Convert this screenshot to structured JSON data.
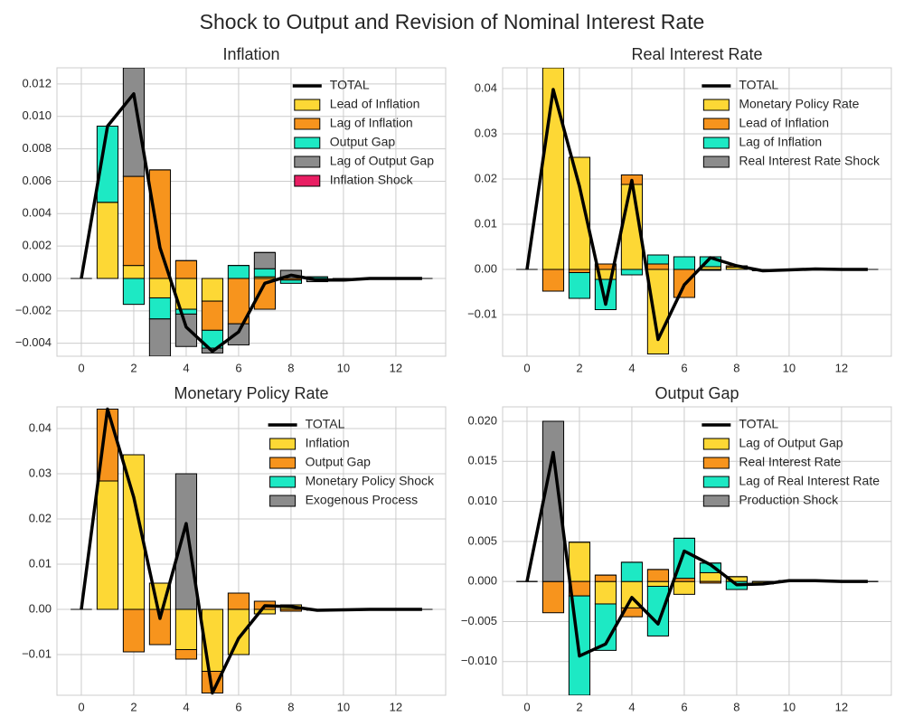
{
  "title": "Shock to Output and Revision of Nominal Interest Rate",
  "chart_data": [
    {
      "type": "bar",
      "title": "Inflation",
      "x": [
        0,
        1,
        2,
        3,
        4,
        5,
        6,
        7,
        8,
        9,
        10,
        11,
        12,
        13
      ],
      "xlim": [
        -0.93,
        13.9
      ],
      "xticks": [
        0,
        2,
        4,
        6,
        8,
        10,
        12
      ],
      "ylim": [
        -0.0048,
        0.013
      ],
      "yticks": [
        {
          "value": -0.004,
          "label": "−0.004"
        },
        {
          "value": -0.002,
          "label": "−0.002"
        },
        {
          "value": 0,
          "label": "0.000"
        },
        {
          "value": 0.002,
          "label": "0.002"
        },
        {
          "value": 0.004,
          "label": "0.004"
        },
        {
          "value": 0.006,
          "label": "0.006"
        },
        {
          "value": 0.008,
          "label": "0.008"
        },
        {
          "value": 0.01,
          "label": "0.010"
        },
        {
          "value": 0.012,
          "label": "0.012"
        }
      ],
      "grid": true,
      "legend": "upper right",
      "stacked": true,
      "total": {
        "name": "TOTAL",
        "color": "#000000",
        "values": [
          0,
          0.0094,
          0.0114,
          0.0019,
          -0.003,
          -0.0045,
          -0.0033,
          -0.0003,
          0.0002,
          -0.0001,
          -0.0001,
          0,
          0,
          0
        ]
      },
      "series": [
        {
          "name": "Lead of Inflation",
          "color": "#fdd835",
          "values": [
            0,
            0.0047,
            0.0008,
            -0.0012,
            -0.0019,
            -0.0014,
            0,
            0.0001,
            0,
            0,
            0,
            0,
            0,
            0
          ]
        },
        {
          "name": "Lag of Inflation",
          "color": "#f7941d",
          "values": [
            0,
            0,
            0.0055,
            0.0067,
            0.0011,
            -0.0018,
            -0.0028,
            -0.0019,
            -0.0001,
            0,
            0,
            0,
            0,
            0
          ]
        },
        {
          "name": "Output Gap",
          "color": "#1de9c4",
          "values": [
            0,
            0.0047,
            -0.0016,
            -0.0013,
            -0.0003,
            -0.0011,
            0.0008,
            0.0005,
            -0.0002,
            0.0001,
            0,
            0,
            0,
            0
          ]
        },
        {
          "name": "Lag of Output Gap",
          "color": "#8c8c8c",
          "values": [
            0,
            0,
            0.0067,
            -0.0023,
            -0.002,
            -0.0003,
            -0.0013,
            0.001,
            0.0005,
            -0.0002,
            -0.0001,
            0,
            0,
            0
          ]
        },
        {
          "name": "Inflation Shock",
          "color": "#e91e63",
          "values": [
            0,
            0,
            0,
            0,
            0,
            0,
            0,
            0,
            0,
            0,
            0,
            0,
            0,
            0
          ]
        }
      ]
    },
    {
      "type": "bar",
      "title": "Real Interest Rate",
      "x": [
        0,
        1,
        2,
        3,
        4,
        5,
        6,
        7,
        8,
        9,
        10,
        11,
        12,
        13
      ],
      "xlim": [
        -0.93,
        13.9
      ],
      "xticks": [
        0,
        2,
        4,
        6,
        8,
        10,
        12
      ],
      "ylim": [
        -0.0192,
        0.0446
      ],
      "yticks": [
        {
          "value": -0.01,
          "label": "−0.01"
        },
        {
          "value": 0,
          "label": "0.00"
        },
        {
          "value": 0.01,
          "label": "0.01"
        },
        {
          "value": 0.02,
          "label": "0.02"
        },
        {
          "value": 0.03,
          "label": "0.03"
        },
        {
          "value": 0.04,
          "label": "0.04"
        }
      ],
      "grid": true,
      "legend": "upper right",
      "stacked": true,
      "total": {
        "name": "TOTAL",
        "color": "#000000",
        "values": [
          0,
          0.0398,
          0.0184,
          -0.0077,
          0.0197,
          -0.0155,
          -0.0034,
          0.0026,
          0.0008,
          -0.0003,
          -0.0001,
          0.0001,
          0,
          0
        ]
      },
      "series": [
        {
          "name": "Monetary Policy Rate",
          "color": "#fdd835",
          "values": [
            0,
            0.0446,
            0.0248,
            -0.0022,
            0.0188,
            -0.0187,
            0,
            0.0006,
            0.0005,
            -0.0002,
            -0.0001,
            0.0001,
            0,
            0
          ]
        },
        {
          "name": "Lead of Inflation",
          "color": "#f7941d",
          "values": [
            0,
            -0.0048,
            -0.0007,
            0.0012,
            0.0021,
            0.0012,
            -0.0062,
            -0.0002,
            0.0003,
            -0.0001,
            0,
            0,
            0,
            0
          ]
        },
        {
          "name": "Lag of Inflation",
          "color": "#1de9c4",
          "values": [
            0,
            0,
            -0.0057,
            -0.0067,
            -0.0012,
            0.002,
            0.0028,
            0.0022,
            0,
            0,
            0,
            0,
            0,
            0
          ]
        },
        {
          "name": "Real Interest Rate Shock",
          "color": "#8c8c8c",
          "values": [
            0,
            0,
            0,
            0,
            0,
            0,
            0,
            0,
            0,
            0,
            0,
            0,
            0,
            0
          ]
        }
      ]
    },
    {
      "type": "bar",
      "title": "Monetary Policy Rate",
      "x": [
        0,
        1,
        2,
        3,
        4,
        5,
        6,
        7,
        8,
        9,
        10,
        11,
        12,
        13
      ],
      "xlim": [
        -0.93,
        13.9
      ],
      "xticks": [
        0,
        2,
        4,
        6,
        8,
        10,
        12
      ],
      "ylim": [
        -0.019,
        0.0448
      ],
      "yticks": [
        {
          "value": -0.01,
          "label": "−0.01"
        },
        {
          "value": 0,
          "label": "0.00"
        },
        {
          "value": 0.01,
          "label": "0.01"
        },
        {
          "value": 0.02,
          "label": "0.02"
        },
        {
          "value": 0.03,
          "label": "0.03"
        },
        {
          "value": 0.04,
          "label": "0.04"
        }
      ],
      "grid": true,
      "legend": "upper right",
      "stacked": true,
      "total": {
        "name": "TOTAL",
        "color": "#000000",
        "values": [
          0,
          0.0443,
          0.0248,
          -0.002,
          0.019,
          -0.0185,
          -0.0064,
          0.0008,
          0.0006,
          -0.0002,
          -0.0001,
          0,
          0,
          0
        ]
      },
      "series": [
        {
          "name": "Inflation",
          "color": "#fdd835",
          "values": [
            0,
            0.0284,
            0.0342,
            0.0058,
            -0.0089,
            -0.0137,
            -0.01,
            -0.001,
            0.001,
            -0.0001,
            0,
            0,
            0,
            0
          ]
        },
        {
          "name": "Output Gap",
          "color": "#f7941d",
          "values": [
            0,
            0.0159,
            -0.0094,
            -0.0078,
            -0.0021,
            -0.0048,
            0.0036,
            0.0018,
            -0.0004,
            -0.0001,
            -0.0001,
            0,
            0,
            0
          ]
        },
        {
          "name": "Monetary Policy Shock",
          "color": "#1de9c4",
          "values": [
            0,
            0,
            0,
            0,
            0,
            0,
            0,
            0,
            0,
            0,
            0,
            0,
            0,
            0
          ]
        },
        {
          "name": "Exogenous Process",
          "color": "#8c8c8c",
          "values": [
            0,
            0,
            0,
            0,
            0.03,
            0,
            0,
            0,
            0,
            0,
            0,
            0,
            0,
            0
          ]
        }
      ]
    },
    {
      "type": "bar",
      "title": "Output Gap",
      "x": [
        0,
        1,
        2,
        3,
        4,
        5,
        6,
        7,
        8,
        9,
        10,
        11,
        12,
        13
      ],
      "xlim": [
        -0.93,
        13.9
      ],
      "xticks": [
        0,
        2,
        4,
        6,
        8,
        10,
        12
      ],
      "ylim": [
        -0.0142,
        0.0218
      ],
      "yticks": [
        {
          "value": -0.01,
          "label": "−0.010"
        },
        {
          "value": -0.005,
          "label": "−0.005"
        },
        {
          "value": 0,
          "label": "0.000"
        },
        {
          "value": 0.005,
          "label": "0.005"
        },
        {
          "value": 0.01,
          "label": "0.010"
        },
        {
          "value": 0.015,
          "label": "0.015"
        },
        {
          "value": 0.02,
          "label": "0.020"
        }
      ],
      "grid": true,
      "legend": "upper right",
      "stacked": true,
      "total": {
        "name": "TOTAL",
        "color": "#000000",
        "values": [
          0,
          0.0161,
          -0.0093,
          -0.0078,
          -0.002,
          -0.0053,
          0.0038,
          0.0021,
          -0.0004,
          -0.0003,
          0.0001,
          0.0001,
          0,
          0
        ]
      },
      "series": [
        {
          "name": "Lag of Output Gap",
          "color": "#fdd835",
          "values": [
            0,
            0,
            0.0049,
            -0.0028,
            -0.0033,
            -0.0006,
            -0.0016,
            0.0011,
            0.0006,
            -0.0002,
            0,
            0,
            0,
            0
          ]
        },
        {
          "name": "Real Interest Rate",
          "color": "#f7941d",
          "values": [
            0,
            -0.0039,
            -0.0018,
            0.0008,
            -0.0011,
            0.0015,
            0.0004,
            -0.0002,
            0,
            -0.0001,
            0.0001,
            0.0001,
            0,
            0
          ]
        },
        {
          "name": "Lag of Real Interest Rate",
          "color": "#1de9c4",
          "values": [
            0,
            0,
            -0.0124,
            -0.0058,
            0.0024,
            -0.0062,
            0.005,
            0.0012,
            -0.001,
            0,
            0,
            0,
            0,
            0
          ]
        },
        {
          "name": "Production Shock",
          "color": "#8c8c8c",
          "values": [
            0,
            0.02,
            0,
            0,
            0,
            0,
            0,
            0,
            0,
            0,
            0,
            0,
            0,
            0
          ]
        }
      ]
    }
  ]
}
